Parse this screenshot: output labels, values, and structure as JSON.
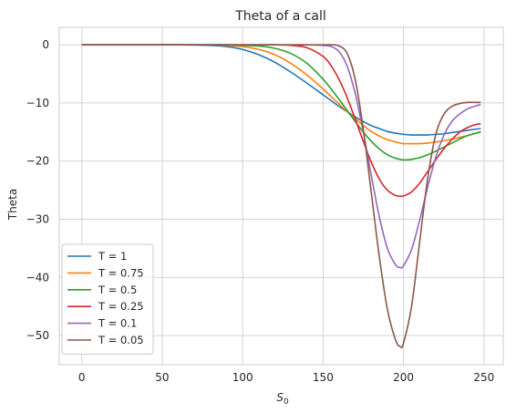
{
  "chart_data": {
    "type": "line",
    "title": "Theta of a call",
    "xlabel_main": "S",
    "xlabel_sub": "0",
    "ylabel": "Theta",
    "xlim": [
      -14,
      262
    ],
    "ylim": [
      -55,
      3
    ],
    "xticks": [
      0,
      50,
      100,
      150,
      200,
      250
    ],
    "yticks": [
      0,
      -10,
      -20,
      -30,
      -40,
      -50
    ],
    "xtick_labels": [
      "0",
      "50",
      "100",
      "150",
      "200",
      "250"
    ],
    "ytick_labels": [
      "0",
      "−10",
      "−20",
      "−30",
      "−40",
      "−50"
    ],
    "grid": true,
    "legend_position": "lower-left",
    "x": [
      0,
      20,
      40,
      60,
      80,
      90,
      100,
      110,
      120,
      130,
      140,
      150,
      155,
      160,
      165,
      170,
      175,
      180,
      185,
      190,
      195,
      198,
      200,
      205,
      210,
      215,
      220,
      225,
      230,
      235,
      240,
      245,
      248
    ],
    "series": [
      {
        "name": "T = 1",
        "color": "#1f77b4",
        "values": [
          0,
          0,
          0,
          0,
          -0.1,
          -0.3,
          -0.8,
          -1.7,
          -3.0,
          -4.7,
          -6.6,
          -8.6,
          -9.6,
          -10.6,
          -11.5,
          -12.4,
          -13.2,
          -13.9,
          -14.4,
          -14.9,
          -15.2,
          -15.3,
          -15.4,
          -15.5,
          -15.5,
          -15.5,
          -15.4,
          -15.3,
          -15.1,
          -14.9,
          -14.7,
          -14.5,
          -14.4
        ]
      },
      {
        "name": "T = 0.75",
        "color": "#ff7f0e",
        "values": [
          0,
          0,
          0,
          0,
          0,
          -0.1,
          -0.3,
          -0.8,
          -1.7,
          -3.2,
          -5.2,
          -7.6,
          -8.9,
          -10.2,
          -11.5,
          -12.7,
          -13.9,
          -14.9,
          -15.7,
          -16.3,
          -16.7,
          -16.9,
          -17.0,
          -17.0,
          -17.0,
          -16.9,
          -16.7,
          -16.5,
          -16.2,
          -15.9,
          -15.6,
          -15.2,
          -14.9
        ]
      },
      {
        "name": "T = 0.5",
        "color": "#2ca02c",
        "values": [
          0,
          0,
          0,
          0,
          0,
          0,
          -0.1,
          -0.2,
          -0.6,
          -1.5,
          -3.2,
          -5.9,
          -7.6,
          -9.4,
          -11.3,
          -13.2,
          -15.0,
          -16.6,
          -17.9,
          -18.9,
          -19.5,
          -19.7,
          -19.8,
          -19.7,
          -19.4,
          -18.9,
          -18.3,
          -17.6,
          -16.9,
          -16.2,
          -15.6,
          -15.2,
          -15.0
        ]
      },
      {
        "name": "T = 0.25",
        "color": "#d62728",
        "values": [
          0,
          0,
          0,
          0,
          0,
          0,
          0,
          0,
          0,
          -0.1,
          -0.5,
          -2.0,
          -3.6,
          -6.0,
          -9.1,
          -12.8,
          -16.6,
          -20.2,
          -23.1,
          -25.0,
          -25.9,
          -26.0,
          -26.0,
          -25.3,
          -23.8,
          -21.8,
          -19.8,
          -17.9,
          -16.3,
          -15.0,
          -14.2,
          -13.7,
          -13.6
        ]
      },
      {
        "name": "T = 0.1",
        "color": "#9467bd",
        "values": [
          0,
          0,
          0,
          0,
          0,
          0,
          0,
          0,
          0,
          0,
          0,
          -0.1,
          -0.3,
          -1.2,
          -3.7,
          -8.4,
          -15.0,
          -22.5,
          -29.6,
          -35.0,
          -37.8,
          -38.3,
          -38.0,
          -35.2,
          -30.2,
          -24.5,
          -19.4,
          -15.6,
          -13.2,
          -11.9,
          -11.0,
          -10.5,
          -10.3
        ]
      },
      {
        "name": "T = 0.05",
        "color": "#8c564b",
        "values": [
          0,
          0,
          0,
          0,
          0,
          0,
          0,
          0,
          0,
          0,
          0,
          0,
          0,
          -0.2,
          -1.5,
          -6.0,
          -14.5,
          -25.5,
          -36.5,
          -45.5,
          -50.7,
          -51.9,
          -51.3,
          -45.0,
          -34.0,
          -23.0,
          -15.5,
          -12.0,
          -10.6,
          -10.1,
          -9.9,
          -9.9,
          -9.9
        ]
      }
    ]
  }
}
